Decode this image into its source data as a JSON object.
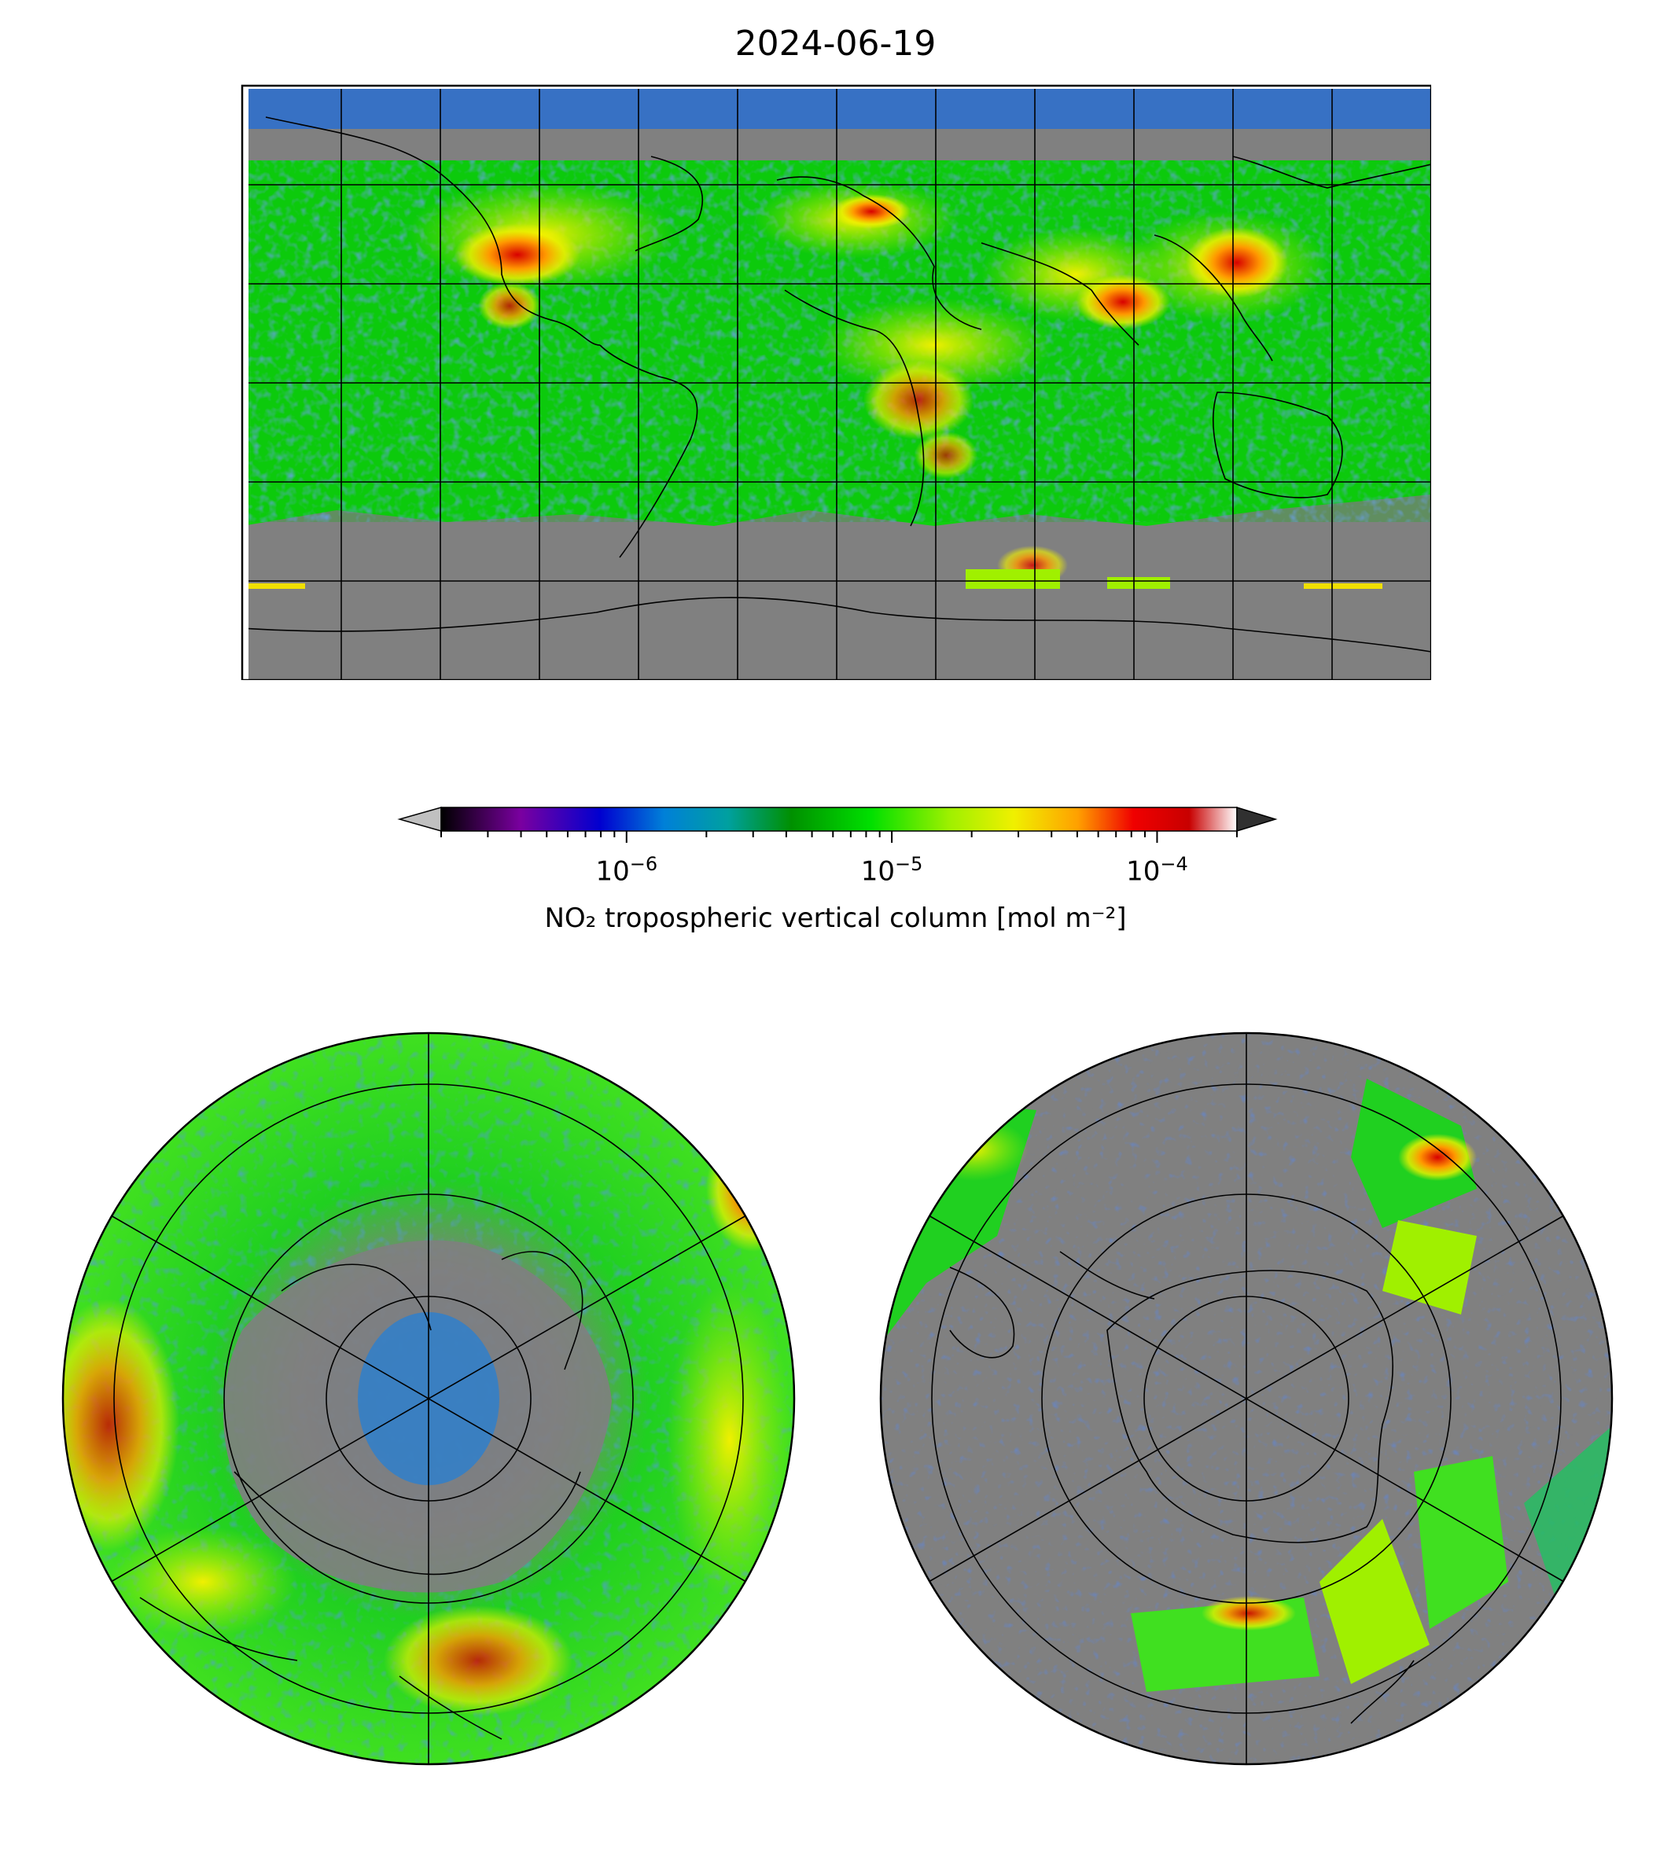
{
  "title": "2024-06-19",
  "colorbar": {
    "label": "NO₂ tropospheric vertical column [mol m⁻²]",
    "scale": "log",
    "range": [
      2e-07,
      0.0002
    ],
    "ticks": [
      {
        "value": 1e-06,
        "base": "10",
        "exp": "−6"
      },
      {
        "value": 1e-05,
        "base": "10",
        "exp": "−5"
      },
      {
        "value": 0.0001,
        "base": "10",
        "exp": "−4"
      }
    ],
    "extend": "both",
    "colors": [
      "#000000",
      "#7a00a0",
      "#0000d0",
      "#0080d8",
      "#00a0a0",
      "#009000",
      "#00e000",
      "#a0f000",
      "#f0f000",
      "#ffa000",
      "#f00000",
      "#c80000",
      "#ffffff"
    ],
    "under_color": "#c0c0c0",
    "over_color": "#303030",
    "nodata_color": "#808080"
  },
  "maps": [
    {
      "name": "global",
      "projection": "plate-carree",
      "gridlines": true
    },
    {
      "name": "north-polar",
      "projection": "north-polar-stereographic",
      "gridlines": true
    },
    {
      "name": "south-polar",
      "projection": "south-polar-stereographic",
      "gridlines": true
    }
  ]
}
